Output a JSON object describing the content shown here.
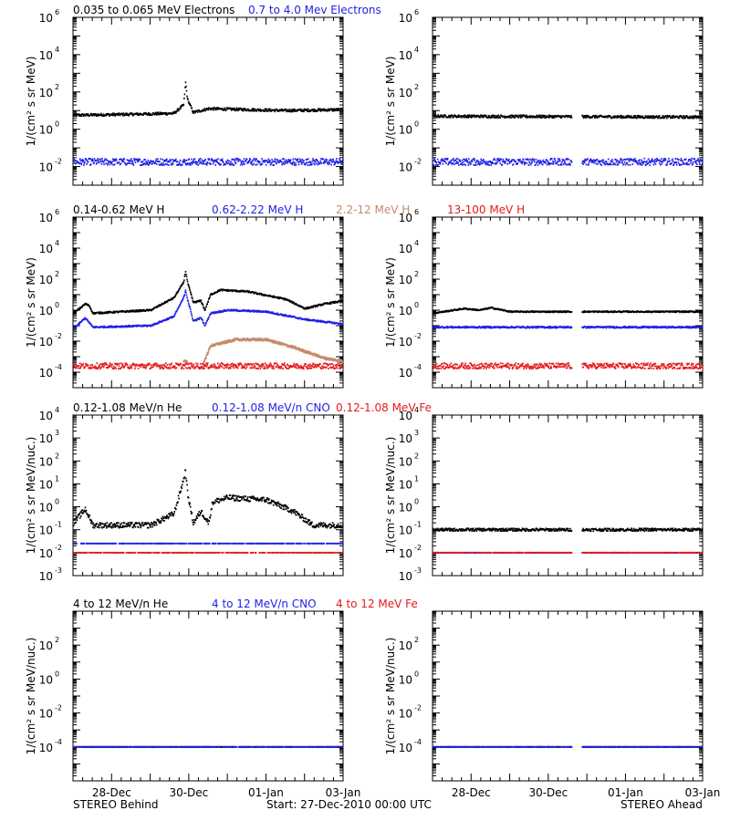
{
  "colors": {
    "black": "#000000",
    "blue": "#1f1fe6",
    "tan": "#c68a6c",
    "red": "#e61a1a"
  },
  "footer": {
    "left": "STEREO Behind",
    "center": "Start: 27-Dec-2010 00:00 UTC",
    "right": "STEREO Ahead"
  },
  "chart_data": [
    {
      "type": "scatter",
      "title_parts": [
        {
          "text": "0.035 to 0.065 MeV Electrons",
          "color": "black"
        },
        {
          "text": "0.7 to 4.0 Mev Electrons",
          "color": "blue"
        }
      ],
      "ylabel": "1/(cm² s sr MeV)",
      "yscale": "log",
      "ylim_exp": [
        -3,
        6
      ],
      "ytick_exp": [
        -2,
        0,
        2,
        4,
        6
      ],
      "xlim_days": [
        0,
        7
      ],
      "xtick_labels": [],
      "panels": [
        {
          "spacecraft": "STEREO Behind",
          "series": [
            {
              "name": "0.035 to 0.065 MeV Electrons",
              "color": "black",
              "noise": 0.07,
              "points": [
                [
                  0,
                  0.75
                ],
                [
                  1.5,
                  0.8
                ],
                [
                  2.6,
                  0.85
                ],
                [
                  2.85,
                  1.3
                ],
                [
                  2.9,
                  2.5
                ],
                [
                  2.95,
                  1.6
                ],
                [
                  3.1,
                  0.9
                ],
                [
                  3.5,
                  1.1
                ],
                [
                  4.5,
                  1.05
                ],
                [
                  5.5,
                  1.0
                ],
                [
                  7,
                  1.05
                ]
              ]
            },
            {
              "name": "0.7 to 4.0 Mev Electrons",
              "color": "blue",
              "noise": 0.18,
              "points": [
                [
                  0,
                  -1.75
                ],
                [
                  7,
                  -1.75
                ]
              ]
            }
          ]
        },
        {
          "spacecraft": "STEREO Ahead",
          "series": [
            {
              "name": "0.035 to 0.065 MeV Electrons",
              "color": "black",
              "noise": 0.07,
              "gaps": [
                [
                  3.6,
                  3.85
                ]
              ],
              "points": [
                [
                  0,
                  0.7
                ],
                [
                  7,
                  0.65
                ]
              ]
            },
            {
              "name": "0.7 to 4.0 Mev Electrons",
              "color": "blue",
              "noise": 0.18,
              "gaps": [
                [
                  3.6,
                  3.85
                ]
              ],
              "points": [
                [
                  0,
                  -1.75
                ],
                [
                  7,
                  -1.75
                ]
              ]
            }
          ]
        }
      ]
    },
    {
      "type": "scatter",
      "title_parts": [
        {
          "text": "0.14-0.62 MeV H",
          "color": "black"
        },
        {
          "text": "0.62-2.22 MeV H",
          "color": "blue"
        },
        {
          "text": "2.2-12 MeV H",
          "color": "tan"
        },
        {
          "text": "13-100 MeV H",
          "color": "red"
        }
      ],
      "ylabel": "1/(cm² s sr MeV)",
      "yscale": "log",
      "ylim_exp": [
        -5,
        6
      ],
      "ytick_exp": [
        -4,
        -2,
        0,
        2,
        4,
        6
      ],
      "xlim_days": [
        0,
        7
      ],
      "xtick_labels": [],
      "panels": [
        {
          "spacecraft": "STEREO Behind",
          "series": [
            {
              "name": "0.14-0.62 MeV H",
              "color": "black",
              "noise": 0.05,
              "points": [
                [
                  0,
                  -0.2
                ],
                [
                  0.3,
                  0.4
                ],
                [
                  0.4,
                  0.3
                ],
                [
                  0.5,
                  -0.2
                ],
                [
                  2.0,
                  0.0
                ],
                [
                  2.6,
                  0.8
                ],
                [
                  2.85,
                  1.8
                ],
                [
                  2.9,
                  2.5
                ],
                [
                  2.95,
                  1.8
                ],
                [
                  3.1,
                  0.5
                ],
                [
                  3.3,
                  0.6
                ],
                [
                  3.4,
                  0.0
                ],
                [
                  3.55,
                  1.0
                ],
                [
                  3.8,
                  1.3
                ],
                [
                  4.5,
                  1.2
                ],
                [
                  5.5,
                  0.7
                ],
                [
                  6.0,
                  0.1
                ],
                [
                  6.5,
                  0.4
                ],
                [
                  7,
                  0.6
                ]
              ]
            },
            {
              "name": "0.62-2.22 MeV H",
              "color": "blue",
              "noise": 0.05,
              "points": [
                [
                  0,
                  -1.2
                ],
                [
                  0.3,
                  -0.5
                ],
                [
                  0.5,
                  -1.1
                ],
                [
                  2.0,
                  -1.0
                ],
                [
                  2.6,
                  -0.4
                ],
                [
                  2.85,
                  0.8
                ],
                [
                  2.9,
                  1.3
                ],
                [
                  2.95,
                  0.7
                ],
                [
                  3.1,
                  -0.7
                ],
                [
                  3.3,
                  -0.5
                ],
                [
                  3.4,
                  -1.0
                ],
                [
                  3.55,
                  -0.2
                ],
                [
                  4.0,
                  0.0
                ],
                [
                  5.0,
                  -0.1
                ],
                [
                  6.0,
                  -0.6
                ],
                [
                  7,
                  -0.9
                ]
              ]
            },
            {
              "name": "2.2-12 MeV H",
              "color": "tan",
              "noise": 0.08,
              "start": 2.85,
              "gaps": [
                [
                  2.95,
                  3.35
                ]
              ],
              "points": [
                [
                  2.85,
                  -3.3
                ],
                [
                  3.35,
                  -3.5
                ],
                [
                  3.55,
                  -2.3
                ],
                [
                  4.2,
                  -1.9
                ],
                [
                  5.0,
                  -1.9
                ],
                [
                  5.7,
                  -2.4
                ],
                [
                  6.5,
                  -3.1
                ],
                [
                  7,
                  -3.3
                ]
              ]
            },
            {
              "name": "13-100 MeV H",
              "color": "red",
              "noise": 0.18,
              "points": [
                [
                  0,
                  -3.6
                ],
                [
                  7,
                  -3.6
                ]
              ]
            }
          ]
        },
        {
          "spacecraft": "STEREO Ahead",
          "series": [
            {
              "name": "0.14-0.62 MeV H",
              "color": "black",
              "noise": 0.04,
              "gaps": [
                [
                  3.6,
                  3.85
                ]
              ],
              "points": [
                [
                  0,
                  -0.2
                ],
                [
                  0.8,
                  0.1
                ],
                [
                  1.2,
                  0.0
                ],
                [
                  1.5,
                  0.15
                ],
                [
                  2.0,
                  -0.1
                ],
                [
                  7,
                  -0.1
                ]
              ]
            },
            {
              "name": "0.62-2.22 MeV H",
              "color": "blue",
              "noise": 0.05,
              "gaps": [
                [
                  3.6,
                  3.85
                ]
              ],
              "points": [
                [
                  0,
                  -1.1
                ],
                [
                  7,
                  -1.1
                ]
              ]
            },
            {
              "name": "13-100 MeV H",
              "color": "red",
              "noise": 0.18,
              "gaps": [
                [
                  3.6,
                  3.85
                ]
              ],
              "points": [
                [
                  0,
                  -3.6
                ],
                [
                  7,
                  -3.6
                ]
              ]
            }
          ]
        }
      ]
    },
    {
      "type": "scatter",
      "title_parts": [
        {
          "text": "0.12-1.08 MeV/n He",
          "color": "black"
        },
        {
          "text": "0.12-1.08 MeV/n CNO",
          "color": "blue"
        },
        {
          "text": "0.12-1.08 MeV Fe",
          "color": "red"
        }
      ],
      "ylabel": "1/(cm² s sr MeV/nuc.)",
      "yscale": "log",
      "ylim_exp": [
        -3,
        4
      ],
      "ytick_exp": [
        -3,
        -2,
        -1,
        0,
        1,
        2,
        3,
        4
      ],
      "xlim_days": [
        0,
        7
      ],
      "xtick_labels": [],
      "panels": [
        {
          "spacecraft": "STEREO Behind",
          "series": [
            {
              "name": "0.12-1.08 MeV/n He",
              "color": "black",
              "noise": 0.12,
              "points": [
                [
                  0,
                  -0.7
                ],
                [
                  0.3,
                  -0.1
                ],
                [
                  0.5,
                  -0.8
                ],
                [
                  2.0,
                  -0.8
                ],
                [
                  2.6,
                  -0.3
                ],
                [
                  2.85,
                  1.2
                ],
                [
                  2.9,
                  1.6
                ],
                [
                  2.95,
                  0.6
                ],
                [
                  3.1,
                  -0.7
                ],
                [
                  3.3,
                  -0.2
                ],
                [
                  3.5,
                  -0.7
                ],
                [
                  3.6,
                  0.2
                ],
                [
                  4.0,
                  0.4
                ],
                [
                  5.0,
                  0.3
                ],
                [
                  5.7,
                  -0.2
                ],
                [
                  6.2,
                  -0.8
                ],
                [
                  7,
                  -0.8
                ]
              ]
            },
            {
              "name": "0.12-1.08 MeV/n CNO",
              "color": "blue",
              "noise": 0.0,
              "points": [
                [
                  0,
                  -1.6
                ],
                [
                  7,
                  -1.6
                ]
              ]
            },
            {
              "name": "0.12-1.08 MeV Fe",
              "color": "red",
              "noise": 0.0,
              "points": [
                [
                  0,
                  -2.0
                ],
                [
                  7,
                  -2.0
                ]
              ]
            }
          ]
        },
        {
          "spacecraft": "STEREO Ahead",
          "series": [
            {
              "name": "0.12-1.08 MeV/n He",
              "color": "black",
              "noise": 0.06,
              "gaps": [
                [
                  3.6,
                  3.85
                ]
              ],
              "points": [
                [
                  0,
                  -1.0
                ],
                [
                  7,
                  -1.0
                ]
              ]
            },
            {
              "name": "0.12-1.08 MeV/n CNO",
              "color": "blue",
              "noise": 0.0,
              "gaps": [
                [
                  3.6,
                  3.85
                ]
              ],
              "points": [
                [
                  0,
                  -2.0
                ],
                [
                  7,
                  -2.0
                ]
              ]
            },
            {
              "name": "0.12-1.08 MeV Fe",
              "color": "red",
              "noise": 0.0,
              "gaps": [
                [
                  3.6,
                  3.85
                ]
              ],
              "points": [
                [
                  0,
                  -2.0
                ],
                [
                  7,
                  -2.0
                ]
              ]
            }
          ]
        }
      ]
    },
    {
      "type": "scatter",
      "title_parts": [
        {
          "text": "4 to 12 MeV/n He",
          "color": "black"
        },
        {
          "text": "4 to 12 MeV/n CNO",
          "color": "blue"
        },
        {
          "text": "4 to 12 MeV Fe",
          "color": "red"
        }
      ],
      "ylabel": "1/(cm² s sr MeV/nuc.)",
      "yscale": "log",
      "ylim_exp": [
        -6,
        4
      ],
      "ytick_exp": [
        -4,
        -2,
        0,
        2
      ],
      "xlim_days": [
        0,
        7
      ],
      "xtick_labels": [
        {
          "day": 1,
          "label": "28-Dec"
        },
        {
          "day": 3,
          "label": "30-Dec"
        },
        {
          "day": 5,
          "label": "01-Jan"
        },
        {
          "day": 7,
          "label": "03-Jan"
        }
      ],
      "panels": [
        {
          "spacecraft": "STEREO Behind",
          "series": [
            {
              "name": "4 to 12 MeV/n He",
              "color": "black",
              "noise": 0.0,
              "points": [
                [
                  0,
                  -4.0
                ],
                [
                  7,
                  -4.0
                ]
              ]
            },
            {
              "name": "4 to 12 MeV/n CNO",
              "color": "blue",
              "noise": 0.0,
              "points": [
                [
                  0,
                  -4.0
                ],
                [
                  7,
                  -4.0
                ]
              ]
            }
          ]
        },
        {
          "spacecraft": "STEREO Ahead",
          "series": [
            {
              "name": "4 to 12 MeV/n He",
              "color": "black",
              "noise": 0.0,
              "gaps": [
                [
                  3.6,
                  3.85
                ]
              ],
              "points": [
                [
                  0,
                  -4.0
                ],
                [
                  7,
                  -4.0
                ]
              ]
            },
            {
              "name": "4 to 12 MeV/n CNO",
              "color": "blue",
              "noise": 0.0,
              "gaps": [
                [
                  3.6,
                  3.85
                ]
              ],
              "points": [
                [
                  0,
                  -4.0
                ],
                [
                  7,
                  -4.0
                ]
              ]
            }
          ]
        }
      ]
    }
  ]
}
